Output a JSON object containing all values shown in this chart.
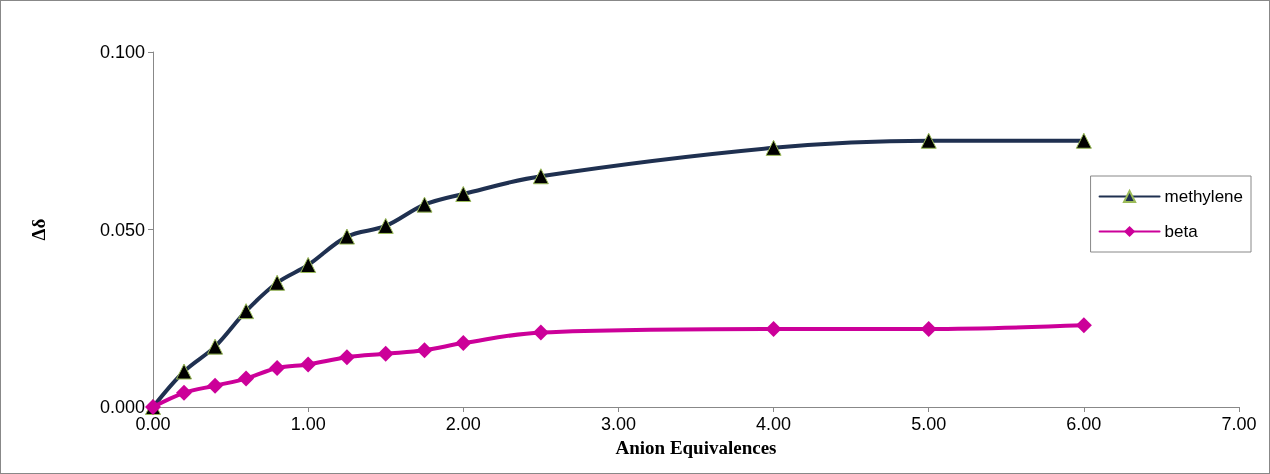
{
  "chart_data": {
    "type": "line",
    "xlabel": "Anion Equivalences",
    "ylabel": "Δδ",
    "x": [
      0,
      0.2,
      0.4,
      0.6,
      0.8,
      1.0,
      1.25,
      1.5,
      1.75,
      2.0,
      2.5,
      4.0,
      5.0,
      6.0
    ],
    "series": [
      {
        "name": "methylene",
        "color": "#1f3050",
        "marker": "triangle",
        "values": [
          0,
          0.01,
          0.017,
          0.027,
          0.035,
          0.04,
          0.048,
          0.051,
          0.057,
          0.06,
          0.065,
          0.073,
          0.075,
          0.075
        ]
      },
      {
        "name": "beta",
        "color": "#cc0099",
        "marker": "diamond",
        "values": [
          0,
          0.004,
          0.006,
          0.008,
          0.011,
          0.012,
          0.014,
          0.015,
          0.016,
          0.018,
          0.021,
          0.022,
          0.022,
          0.023
        ]
      }
    ],
    "xlim": [
      0,
      7
    ],
    "xticks": [
      {
        "value": 0,
        "label": "0.00"
      },
      {
        "value": 1,
        "label": "1.00"
      },
      {
        "value": 2,
        "label": "2.00"
      },
      {
        "value": 3,
        "label": "3.00"
      },
      {
        "value": 4,
        "label": "4.00"
      },
      {
        "value": 5,
        "label": "5.00"
      },
      {
        "value": 6,
        "label": "6.00"
      },
      {
        "value": 7,
        "label": "7.00"
      }
    ],
    "ylim": [
      0,
      0.1
    ],
    "yticks": [
      {
        "value": 0,
        "label": "0.000"
      },
      {
        "value": 0.05,
        "label": "0.050"
      },
      {
        "value": 0.1,
        "label": "0.100"
      }
    ],
    "grid": false,
    "legend": "right",
    "line_style": "solid"
  }
}
